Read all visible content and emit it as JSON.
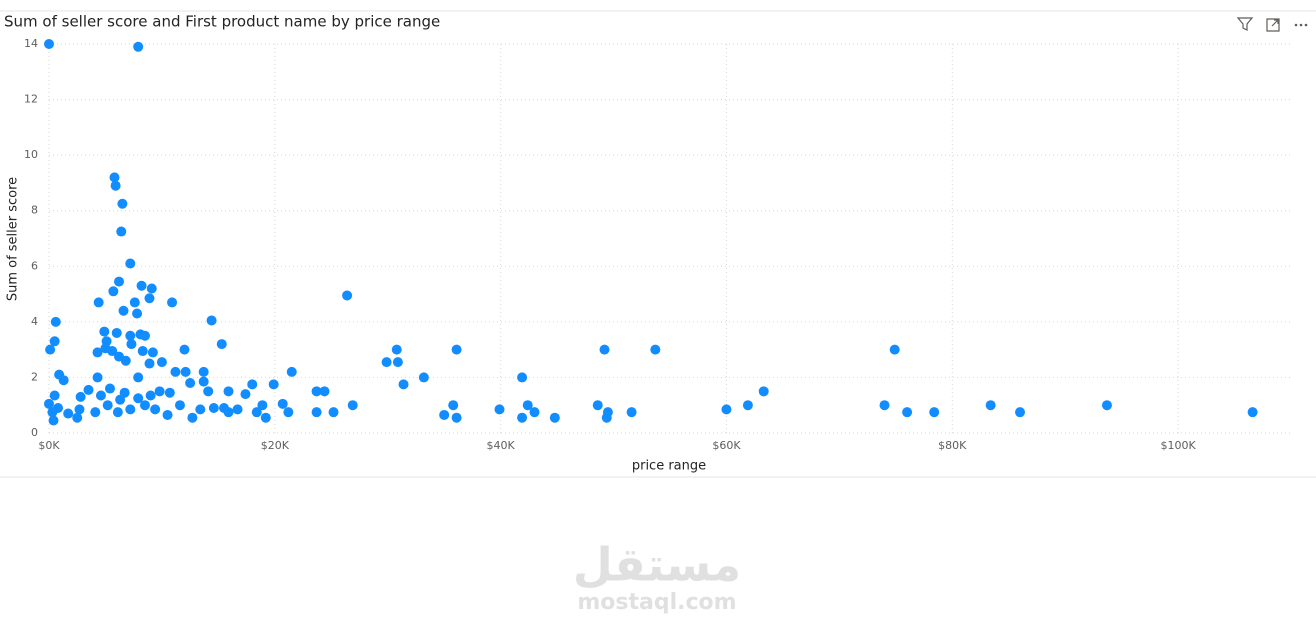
{
  "chart_data": {
    "type": "scatter",
    "title": "Sum of seller score and First product name by price range",
    "x_label": "price range",
    "y_label": "Sum of seller score",
    "color": "#118DFF",
    "grid": true,
    "xlim": [
      0,
      110000
    ],
    "ylim": [
      0,
      14
    ],
    "xticks": [
      {
        "value": 0,
        "label": "$0K"
      },
      {
        "value": 20000,
        "label": "$20K"
      },
      {
        "value": 40000,
        "label": "$40K"
      },
      {
        "value": 60000,
        "label": "$60K"
      },
      {
        "value": 80000,
        "label": "$80K"
      },
      {
        "value": 100000,
        "label": "$100K"
      }
    ],
    "yticks": [
      0,
      2,
      4,
      6,
      8,
      10,
      12,
      14
    ],
    "x": [
      0,
      7900,
      5800,
      5900,
      6500,
      6400,
      7200,
      26400,
      6200,
      8200,
      9100,
      5700,
      4400,
      8900,
      10900,
      7600,
      6600,
      7800,
      600,
      14400,
      4900,
      6000,
      7200,
      8100,
      8500,
      500,
      5100,
      15300,
      5000,
      7300,
      100,
      4300,
      5600,
      8300,
      9200,
      12000,
      30800,
      36100,
      49200,
      53700,
      74900,
      29900,
      30900,
      6200,
      6800,
      10000,
      8900,
      21500,
      13700,
      12100,
      11200,
      33200,
      41900,
      900,
      4300,
      1300,
      7900,
      12500,
      13700,
      19900,
      31400,
      18000,
      63300,
      23700,
      24400,
      15900,
      14100,
      9800,
      2800,
      17400,
      26900,
      35800,
      42400,
      48600,
      61900,
      74000,
      83400,
      93700,
      39900,
      60000,
      49500,
      51600,
      43000,
      76000,
      78400,
      86000,
      106600,
      23700,
      25200,
      35000,
      36100,
      41900,
      44800,
      49400,
      21200,
      20700,
      18900,
      19200,
      18400,
      16700,
      15900,
      14600,
      13400,
      11600,
      10500,
      9400,
      8500,
      7200,
      6100,
      5200,
      4100,
      2700,
      1700,
      800,
      300,
      400,
      0,
      500,
      3500,
      5400,
      6700,
      9000,
      10700,
      6300,
      7900,
      4600,
      2500,
      12700,
      15500
    ],
    "values": [
      14,
      13.9,
      9.2,
      8.9,
      8.25,
      7.25,
      6.1,
      4.95,
      5.45,
      5.3,
      5.2,
      5.1,
      4.7,
      4.85,
      4.7,
      4.7,
      4.4,
      4.3,
      4.0,
      4.05,
      3.65,
      3.6,
      3.5,
      3.55,
      3.5,
      3.3,
      3.3,
      3.2,
      3.05,
      3.2,
      3.0,
      2.9,
      2.95,
      2.95,
      2.9,
      3.0,
      3.0,
      3.0,
      3.0,
      3.0,
      3.0,
      2.55,
      2.55,
      2.75,
      2.6,
      2.55,
      2.5,
      2.2,
      2.2,
      2.2,
      2.2,
      2.0,
      2.0,
      2.1,
      2.0,
      1.9,
      2.0,
      1.8,
      1.85,
      1.75,
      1.75,
      1.75,
      1.5,
      1.5,
      1.5,
      1.5,
      1.5,
      1.5,
      1.3,
      1.4,
      1.0,
      1.0,
      1.0,
      1.0,
      1.0,
      1.0,
      1.0,
      1.0,
      0.85,
      0.85,
      0.75,
      0.75,
      0.75,
      0.75,
      0.75,
      0.75,
      0.75,
      0.75,
      0.75,
      0.65,
      0.55,
      0.55,
      0.55,
      0.55,
      0.75,
      1.05,
      1.0,
      0.55,
      0.75,
      0.85,
      0.75,
      0.9,
      0.85,
      1.0,
      0.65,
      0.85,
      1.0,
      0.85,
      0.75,
      1.0,
      0.75,
      0.85,
      0.7,
      0.9,
      0.75,
      0.45,
      1.05,
      1.35,
      1.55,
      1.6,
      1.45,
      1.35,
      1.45,
      1.2,
      1.25,
      1.35,
      0.55,
      0.55,
      0.9
    ]
  },
  "watermark": {
    "logo": "مستقل",
    "site": "mostaql.com"
  }
}
